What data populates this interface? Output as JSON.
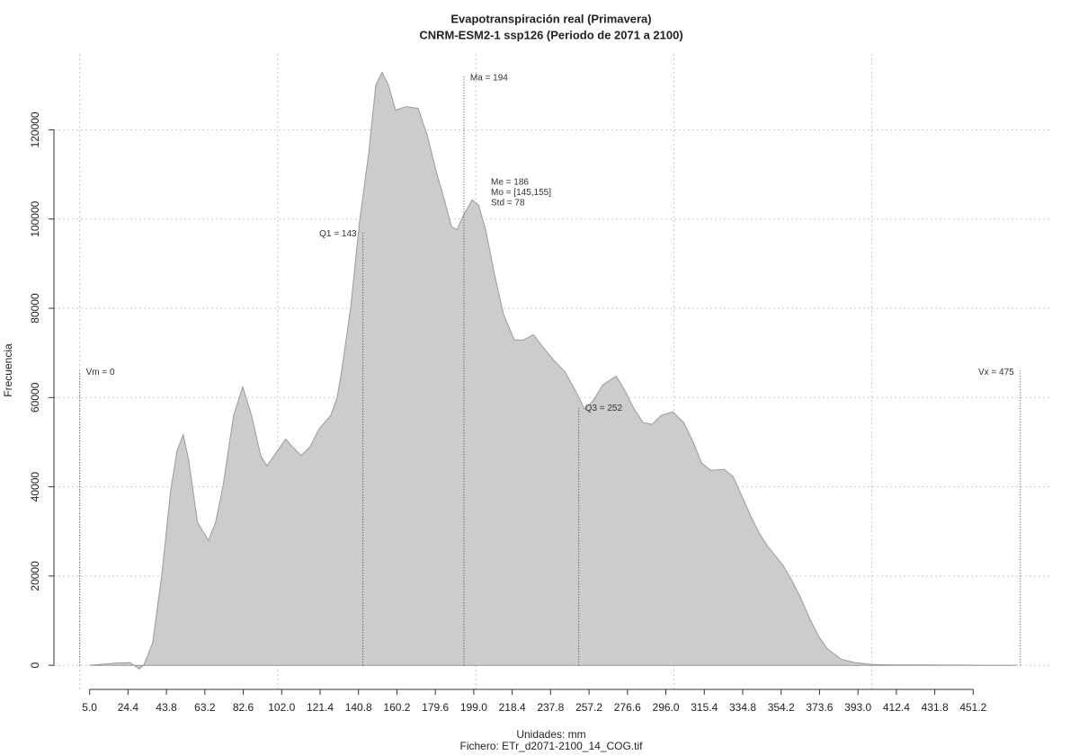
{
  "chart_data": {
    "type": "area",
    "title": "Evapotranspiración real (Primavera)",
    "subtitle": "CNRM-ESM2-1 ssp126 (Periodo de 2071 a 2100)",
    "x_label": "Unidades: mm",
    "x_label_2": "Fichero: ETr_d2071-2100_14_COG.tif",
    "y_label": "Frecuencia",
    "color": "#cccccc",
    "line_color": "#9a9a9a",
    "grid": true,
    "xlim": [
      -13,
      491
    ],
    "ylim": [
      -6000,
      137000
    ],
    "xticks": [
      {
        "value": 5,
        "label": "5.0"
      },
      24.4,
      43.8,
      63.2,
      82.6,
      {
        "value": 102,
        "label": "102.0"
      },
      121.4,
      140.8,
      160.2,
      179.6,
      {
        "value": 199,
        "label": "199.0"
      },
      218.4,
      237.8,
      257.2,
      276.6,
      {
        "value": 296,
        "label": "296.0"
      },
      315.4,
      334.8,
      354.2,
      373.6,
      {
        "value": 393,
        "label": "393.0"
      },
      412.4,
      431.8,
      451.2
    ],
    "yticks": [
      0,
      20000,
      40000,
      60000,
      80000,
      100000,
      120000
    ],
    "xgrid": [
      0,
      100,
      200,
      300,
      400
    ],
    "x": [
      5,
      18.6,
      25.5,
      30,
      32.3,
      36.8,
      41.4,
      45.9,
      49.1,
      52.3,
      55,
      59.5,
      65,
      68.6,
      72.3,
      77.7,
      82.3,
      86.8,
      91.4,
      94.5,
      98.2,
      104,
      107.3,
      111.8,
      116.4,
      120.9,
      126.8,
      130,
      132.3,
      136.8,
      141.4,
      145.9,
      149.5,
      152.7,
      155.9,
      159.5,
      164.9,
      170.9,
      175.5,
      180,
      184.5,
      187.7,
      190.5,
      193.6,
      198.2,
      201.4,
      205,
      209.5,
      214.1,
      219.5,
      224.1,
      229.1,
      233.6,
      239.1,
      245,
      250.5,
      255,
      259.5,
      264.1,
      270.9,
      275.5,
      280,
      284.5,
      289.1,
      293.6,
      299.5,
      305,
      309.5,
      314.1,
      318.6,
      325.5,
      330,
      334.5,
      339.1,
      343.6,
      348.2,
      355,
      359.5,
      364.1,
      368.6,
      373.2,
      377.7,
      384.5,
      391.4,
      400.5,
      409.5,
      473.2
    ],
    "values": [
      0,
      500,
      600,
      -800,
      0,
      5000,
      20000,
      39000,
      48000,
      51700,
      46000,
      32000,
      28000,
      32000,
      40000,
      56000,
      62400,
      56000,
      47000,
      44700,
      47000,
      50700,
      49000,
      47000,
      49000,
      53000,
      56000,
      60000,
      66000,
      80000,
      99600,
      114700,
      130000,
      132900,
      130000,
      124400,
      125200,
      124800,
      118800,
      110700,
      103700,
      98300,
      97600,
      100700,
      104300,
      103100,
      97600,
      87600,
      78500,
      72900,
      72900,
      74100,
      71500,
      68500,
      65800,
      61400,
      57400,
      59400,
      62800,
      64800,
      61400,
      57400,
      54400,
      54000,
      56000,
      56800,
      54400,
      50300,
      45300,
      43700,
      43900,
      42300,
      37800,
      33200,
      29200,
      26200,
      22500,
      19100,
      15100,
      10500,
      6400,
      3600,
      1400,
      600,
      200,
      100,
      0
    ],
    "annotations": [
      {
        "label": "Vm = 0",
        "x": 0,
        "top": 66000,
        "side": "right"
      },
      {
        "label": "Q1 = 143",
        "x": 143,
        "top": 97000,
        "side": "left"
      },
      {
        "label": "Ma = 194",
        "x": 194,
        "top": 132000,
        "side": "right"
      },
      {
        "label": "Q3 = 252",
        "x": 252,
        "top": 58000,
        "side": "right"
      },
      {
        "label": "Vx = 475",
        "x": 475,
        "top": 66000,
        "side": "left"
      }
    ],
    "stats": [
      "Me = 186",
      "Mo = [145,155]",
      "Std = 78"
    ]
  }
}
